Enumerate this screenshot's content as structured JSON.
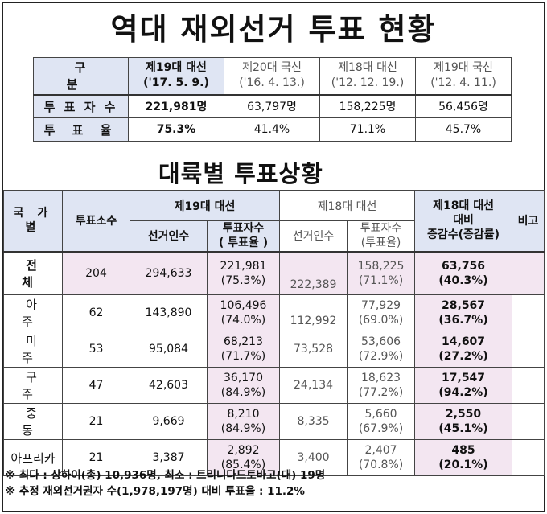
{
  "title": "역대 재외선거 투표 현황",
  "summary": {
    "label_header": "구 분",
    "columns": [
      {
        "name": "제19대 대선",
        "date": "('17. 5. 9.)"
      },
      {
        "name": "제20대 국선",
        "date": "('16. 4. 13.)"
      },
      {
        "name": "제18대 대선",
        "date": "('12. 12. 19.)"
      },
      {
        "name": "제19대 국선",
        "date": "('12. 4. 11.)"
      }
    ],
    "rows": [
      {
        "label": "투 표 자 수",
        "values": [
          "221,981명",
          "63,797명",
          "158,225명",
          "56,456명"
        ]
      },
      {
        "label": "투 표 율",
        "values": [
          "75.3%",
          "41.4%",
          "71.1%",
          "45.7%"
        ]
      }
    ]
  },
  "subtitle": "대륙별 투표상황",
  "detail": {
    "headers": {
      "country": "국 가 별",
      "stations": "투표소수",
      "e19": "제19대 대선",
      "e19_voters": "선거인수",
      "e19_turnout_1": "투표자수",
      "e19_turnout_2": "( 투표율 )",
      "e18": "제18대 대선",
      "e18_voters": "선거인수",
      "e18_turnout_1": "투표자수",
      "e18_turnout_2": "(투표율)",
      "change_1": "제18대 대선",
      "change_2": "대비",
      "change_3": "증감수(증감률)",
      "note": "비고"
    },
    "rows": [
      {
        "region": "전 체",
        "stations": "204",
        "e19_voters": "294,633",
        "e19_turnout": "221,981",
        "e19_rate": "(75.3%)",
        "e18_voters": "222,389",
        "e18_turnout": "158,225",
        "e18_rate": "(71.1%)",
        "change": "63,756",
        "change_rate": "(40.3%)"
      },
      {
        "region": "아 주",
        "stations": "62",
        "e19_voters": "143,890",
        "e19_turnout": "106,496",
        "e19_rate": "(74.0%)",
        "e18_voters": "112,992",
        "e18_turnout": "77,929",
        "e18_rate": "(69.0%)",
        "change": "28,567",
        "change_rate": "(36.7%)"
      },
      {
        "region": "미 주",
        "stations": "53",
        "e19_voters": "95,084",
        "e19_turnout": "68,213",
        "e19_rate": "(71.7%)",
        "e18_voters": "73,528",
        "e18_turnout": "53,606",
        "e18_rate": "(72.9%)",
        "change": "14,607",
        "change_rate": "(27.2%)"
      },
      {
        "region": "구 주",
        "stations": "47",
        "e19_voters": "42,603",
        "e19_turnout": "36,170",
        "e19_rate": "(84.9%)",
        "e18_voters": "24,134",
        "e18_turnout": "18,623",
        "e18_rate": "(77.2%)",
        "change": "17,547",
        "change_rate": "(94.2%)"
      },
      {
        "region": "중 동",
        "stations": "21",
        "e19_voters": "9,669",
        "e19_turnout": "8,210",
        "e19_rate": "(84.9%)",
        "e18_voters": "8,335",
        "e18_turnout": "5,660",
        "e18_rate": "(67.9%)",
        "change": "2,550",
        "change_rate": "(45.1%)"
      },
      {
        "region": "아프리카",
        "stations": "21",
        "e19_voters": "3,387",
        "e19_turnout": "2,892",
        "e19_rate": "(85.4%)",
        "e18_voters": "3,400",
        "e18_turnout": "2,407",
        "e18_rate": "(70.8%)",
        "change": "485",
        "change_rate": "(20.1%)"
      }
    ]
  },
  "notes": [
    "※ 최다 : 상하이(총) 10,936명,  최소 : 트리니다드토바고(대) 19명",
    "※ 추정 재외선거권자 수(1,978,197명) 대비 투표율 : 11.2%"
  ],
  "colors": {
    "header_blue": "#dfe5f3",
    "highlight_pink": "#f3e6f1"
  }
}
